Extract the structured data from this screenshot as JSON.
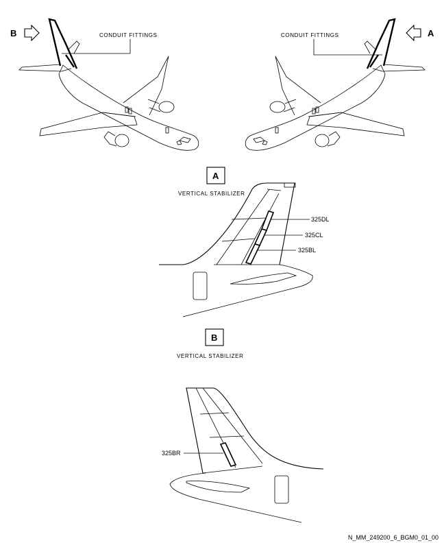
{
  "callouts": {
    "conduit_left": "CONDUIT FITTINGS",
    "conduit_right": "CONDUIT FITTINGS"
  },
  "arrows": {
    "left_letter": "B",
    "right_letter": "A"
  },
  "view_a": {
    "letter": "A",
    "title": "VERTICAL STABILIZER",
    "panels": [
      "325DL",
      "325CL",
      "325BL"
    ]
  },
  "view_b": {
    "letter": "B",
    "title": "VERTICAL STABILIZER",
    "panels": [
      "325BR"
    ]
  },
  "figure_id": "N_MM_249200_6_BGM0_01_00"
}
